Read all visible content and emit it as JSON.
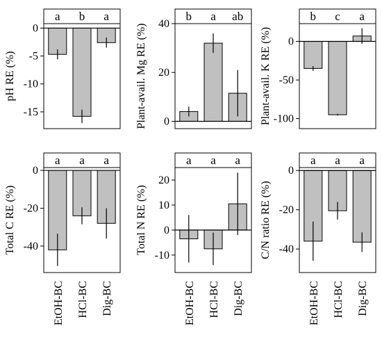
{
  "chart_data": [
    {
      "type": "bar",
      "categories": [
        "EtOH-BC",
        "HCl-BC",
        "Dig-BC"
      ],
      "values": [
        -4.7,
        -15.8,
        -2.6
      ],
      "errors": [
        0.9,
        1.2,
        0.9
      ],
      "letters": [
        "a",
        "b",
        "a"
      ],
      "ylabel": "pH RE (%)",
      "ylim": [
        -18,
        0.8
      ],
      "yticks": [
        0,
        -5,
        -10,
        -15
      ],
      "ytick_labels": [
        "0",
        "-5",
        "-10",
        "-15"
      ]
    },
    {
      "type": "bar",
      "categories": [
        "EtOH-BC",
        "HCl-BC",
        "Dig-BC"
      ],
      "values": [
        4,
        32,
        11.5
      ],
      "errors": [
        2,
        4,
        9.5
      ],
      "letters": [
        "b",
        "a",
        "ab"
      ],
      "ylabel": "Plant-avail. Mg RE (%)",
      "ylim": [
        -3,
        40
      ],
      "yticks": [
        0,
        20,
        40
      ],
      "ytick_labels": [
        "0",
        "20",
        "40"
      ]
    },
    {
      "type": "bar",
      "categories": [
        "EtOH-BC",
        "HCl-BC",
        "Dig-BC"
      ],
      "values": [
        -35,
        -95,
        7
      ],
      "errors": [
        3,
        1,
        10
      ],
      "letters": [
        "b",
        "c",
        "a"
      ],
      "ylabel": "Plant-avail. K RE (%)",
      "ylim": [
        -113,
        23
      ],
      "yticks": [
        0,
        -50,
        -100
      ],
      "ytick_labels": [
        "0",
        "-50",
        "-100"
      ]
    },
    {
      "type": "bar",
      "categories": [
        "EtOH-BC",
        "HCl-BC",
        "Dig-BC"
      ],
      "values": [
        -42,
        -24,
        -28
      ],
      "errors": [
        8.5,
        4.5,
        8
      ],
      "letters": [
        "a",
        "a",
        "a"
      ],
      "ylabel": "Total C RE (%)",
      "ylim": [
        -54,
        1.5
      ],
      "yticks": [
        0,
        -20,
        -40
      ],
      "ytick_labels": [
        "0",
        "-20",
        "-40"
      ]
    },
    {
      "type": "bar",
      "categories": [
        "EtOH-BC",
        "HCl-BC",
        "Dig-BC"
      ],
      "values": [
        -3.5,
        -7.5,
        10.5
      ],
      "errors": [
        9.5,
        6.5,
        12.5
      ],
      "letters": [
        "a",
        "a",
        "a"
      ],
      "ylabel": "Total N RE (%)",
      "ylim": [
        -17,
        25
      ],
      "yticks": [
        20,
        10,
        0,
        -10
      ],
      "ytick_labels": [
        "20",
        "10",
        "0",
        "-10"
      ]
    },
    {
      "type": "bar",
      "categories": [
        "EtOH-BC",
        "HCl-BC",
        "Dig-BC"
      ],
      "values": [
        -36,
        -20.5,
        -36.5
      ],
      "errors": [
        10,
        4.5,
        5
      ],
      "letters": [
        "a",
        "a",
        "a"
      ],
      "ylabel": "C/N ratio RE (%)",
      "ylim": [
        -52,
        1.5
      ],
      "yticks": [
        0,
        -20,
        -40
      ],
      "ytick_labels": [
        "0",
        "-20",
        "-40"
      ]
    }
  ]
}
